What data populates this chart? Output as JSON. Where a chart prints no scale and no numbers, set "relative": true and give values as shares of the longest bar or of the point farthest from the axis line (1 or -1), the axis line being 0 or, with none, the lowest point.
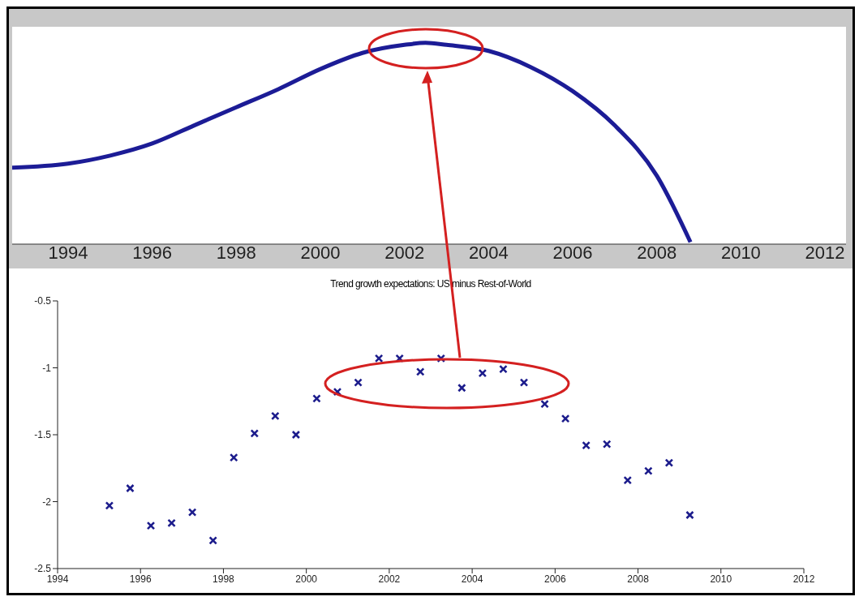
{
  "chart_data": [
    {
      "type": "line",
      "relative": true,
      "tick_labels": "x",
      "xlim": [
        1992.67,
        2012.5
      ],
      "xticks": [
        1994,
        1996,
        1998,
        2000,
        2002,
        2004,
        2006,
        2008,
        2010,
        2012
      ],
      "grid": false,
      "legend": false,
      "marker": "none",
      "line_style": "solid",
      "series": [
        {
          "color": "#1c1c96",
          "x": [
            1992.67,
            1994,
            1995,
            1996,
            1997,
            1998,
            1999,
            2000,
            2001,
            2002,
            2002.5,
            2003,
            2004,
            2005,
            2006,
            2007,
            2008,
            2008.8
          ],
          "values": [
            0.38,
            0.4,
            0.44,
            0.5,
            0.59,
            0.68,
            0.77,
            0.87,
            0.95,
            0.99,
            1,
            0.99,
            0.96,
            0.88,
            0.76,
            0.59,
            0.34,
            0.01
          ]
        }
      ]
    },
    {
      "type": "scatter",
      "title": "Trend growth expectations: US minus Rest-of-World",
      "xlim": [
        1994,
        2012
      ],
      "xticks": [
        1994,
        1996,
        1998,
        2000,
        2002,
        2004,
        2006,
        2008,
        2010,
        2012
      ],
      "ylim": [
        -2.5,
        -0.5
      ],
      "yticks": [
        {
          "value": -2.5,
          "label": "-2.5"
        },
        {
          "value": -2,
          "label": "-2"
        },
        {
          "value": -1.5,
          "label": "-1.5"
        },
        {
          "value": -1,
          "label": "-1"
        },
        {
          "value": -0.5,
          "label": "-0.5"
        }
      ],
      "grid": false,
      "legend": false,
      "marker": "cross",
      "series": [
        {
          "color": "#1c1c8c",
          "x": [
            1995.25,
            1995.75,
            1996.25,
            1996.75,
            1997.25,
            1997.75,
            1998.25,
            1998.75,
            1999.25,
            1999.75,
            2000.25,
            2000.75,
            2001.25,
            2001.75,
            2002.25,
            2002.75,
            2003.25,
            2003.75,
            2004.25,
            2004.75,
            2005.25,
            2005.75,
            2006.25,
            2006.75,
            2007.25,
            2007.75,
            2008.25,
            2008.75,
            2009.25
          ],
          "values": [
            -2.03,
            -1.9,
            -2.18,
            -2.16,
            -2.08,
            -2.29,
            -1.67,
            -1.49,
            -1.36,
            -1.5,
            -1.23,
            -1.18,
            -1.11,
            -0.93,
            -0.93,
            -1.03,
            -0.93,
            -1.15,
            -1.04,
            -1.01,
            -1.11,
            -1.27,
            -1.38,
            -1.58,
            -1.57,
            -1.84,
            -1.77,
            -1.71,
            -2.1
          ]
        }
      ]
    }
  ]
}
